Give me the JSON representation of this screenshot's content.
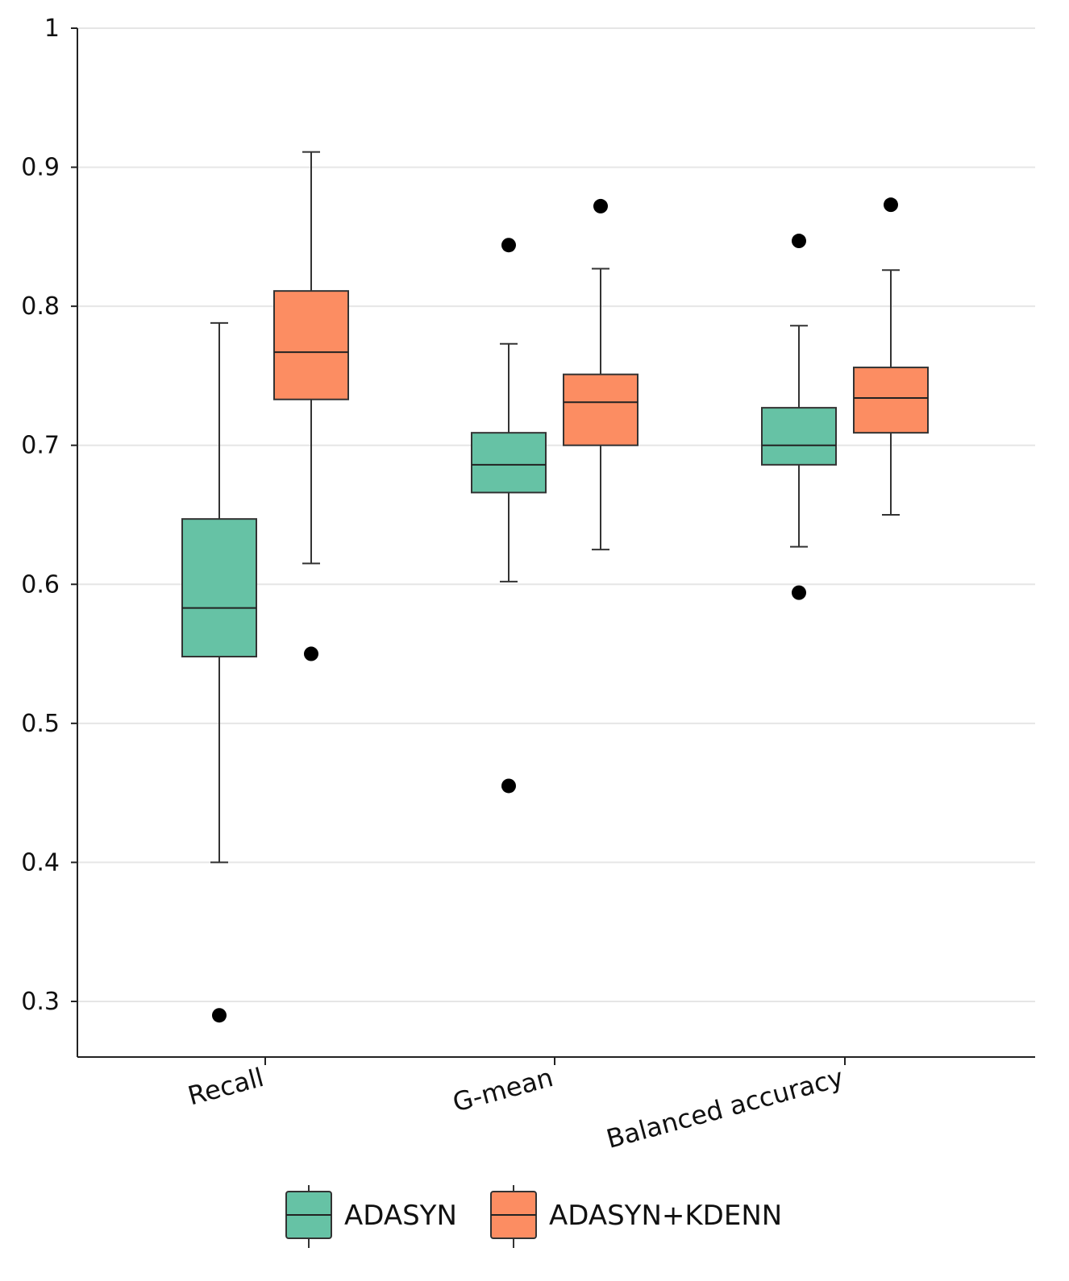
{
  "chart_data": {
    "type": "boxplot",
    "title": "",
    "xlabel": "",
    "ylabel": "",
    "ylim": [
      0.26,
      1.0
    ],
    "yticks": [
      0.3,
      0.4,
      0.5,
      0.6,
      0.7,
      0.8,
      0.9,
      1
    ],
    "ytick_labels": [
      "0.3",
      "0.4",
      "0.5",
      "0.6",
      "0.7",
      "0.8",
      "0.9",
      "1"
    ],
    "grid": true,
    "legend_position": "bottom",
    "categories": [
      "Recall",
      "G-mean",
      "Balanced accuracy"
    ],
    "series": [
      {
        "name": "ADASYN",
        "color": "#66c2a5",
        "boxes": [
          {
            "whisker_low": 0.4,
            "q1": 0.548,
            "median": 0.583,
            "q3": 0.647,
            "whisker_high": 0.788,
            "outliers": [
              0.29
            ]
          },
          {
            "whisker_low": 0.602,
            "q1": 0.666,
            "median": 0.686,
            "q3": 0.709,
            "whisker_high": 0.773,
            "outliers": [
              0.844,
              0.455
            ]
          },
          {
            "whisker_low": 0.627,
            "q1": 0.686,
            "median": 0.7,
            "q3": 0.727,
            "whisker_high": 0.786,
            "outliers": [
              0.847,
              0.594
            ]
          }
        ]
      },
      {
        "name": "ADASYN+KDENN",
        "color": "#fc8d62",
        "boxes": [
          {
            "whisker_low": 0.615,
            "q1": 0.733,
            "median": 0.767,
            "q3": 0.811,
            "whisker_high": 0.911,
            "outliers": [
              0.55
            ]
          },
          {
            "whisker_low": 0.625,
            "q1": 0.7,
            "median": 0.731,
            "q3": 0.751,
            "whisker_high": 0.827,
            "outliers": [
              0.872
            ]
          },
          {
            "whisker_low": 0.65,
            "q1": 0.709,
            "median": 0.734,
            "q3": 0.756,
            "whisker_high": 0.826,
            "outliers": [
              0.873
            ]
          }
        ]
      }
    ]
  },
  "legend": {
    "items": [
      {
        "label": "ADASYN",
        "color": "#66c2a5"
      },
      {
        "label": "ADASYN+KDENN",
        "color": "#fc8d62"
      }
    ]
  }
}
